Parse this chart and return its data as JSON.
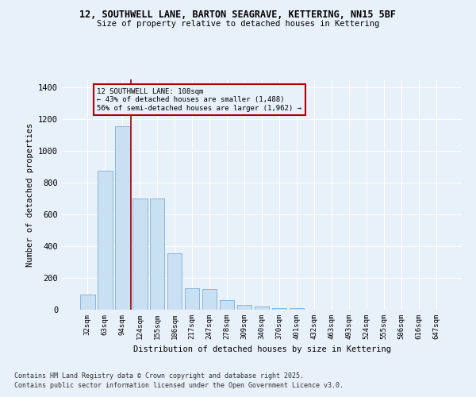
{
  "title_line1": "12, SOUTHWELL LANE, BARTON SEAGRAVE, KETTERING, NN15 5BF",
  "title_line2": "Size of property relative to detached houses in Kettering",
  "xlabel": "Distribution of detached houses by size in Kettering",
  "ylabel": "Number of detached properties",
  "bar_color": "#c9dff2",
  "bar_edge_color": "#7aaed6",
  "vline_color": "#aa0000",
  "annotation_title": "12 SOUTHWELL LANE: 108sqm",
  "annotation_line2": "← 43% of detached houses are smaller (1,488)",
  "annotation_line3": "56% of semi-detached houses are larger (1,962) →",
  "categories": [
    "32sqm",
    "63sqm",
    "94sqm",
    "124sqm",
    "155sqm",
    "186sqm",
    "217sqm",
    "247sqm",
    "278sqm",
    "309sqm",
    "340sqm",
    "370sqm",
    "401sqm",
    "432sqm",
    "463sqm",
    "493sqm",
    "524sqm",
    "555sqm",
    "586sqm",
    "616sqm",
    "647sqm"
  ],
  "values": [
    95,
    875,
    1155,
    700,
    700,
    355,
    135,
    130,
    60,
    28,
    20,
    12,
    8,
    0,
    0,
    0,
    0,
    0,
    0,
    0,
    0
  ],
  "ylim": [
    0,
    1450
  ],
  "yticks": [
    0,
    200,
    400,
    600,
    800,
    1000,
    1200,
    1400
  ],
  "background_color": "#e8f0fa",
  "grid_color": "#ffffff",
  "footer_line1": "Contains HM Land Registry data © Crown copyright and database right 2025.",
  "footer_line2": "Contains public sector information licensed under the Open Government Licence v3.0."
}
